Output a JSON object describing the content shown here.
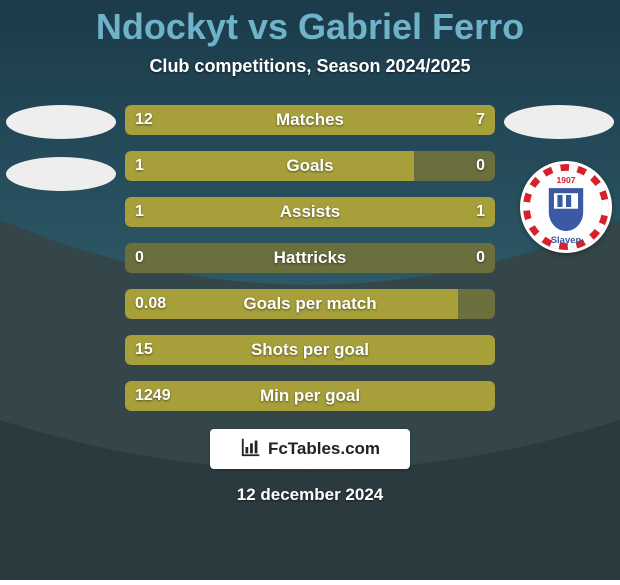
{
  "background": {
    "top_gradient_from": "#1b3a4a",
    "top_gradient_to": "#2d5866",
    "mid_color": "#35464a",
    "bottom_color": "#2a3a3e"
  },
  "title": {
    "text": "Ndockyt vs Gabriel Ferro",
    "color": "#6fb3c9",
    "fontsize": 36
  },
  "subtitle": "Club competitions, Season 2024/2025",
  "avatar_color": "#e8e8e8",
  "club_badge": {
    "name": "Slaven",
    "year": "1907",
    "outer": "#d8202a",
    "white": "#ffffff",
    "blue": "#3b5aa6"
  },
  "bars": {
    "track_color": "#6b6e3d",
    "fill_color": "#a7a03a",
    "label_fontsize": 17,
    "value_fontsize": 16,
    "rows": [
      {
        "label": "Matches",
        "left": "12",
        "right": "7",
        "left_pct": 58,
        "right_pct": 42
      },
      {
        "label": "Goals",
        "left": "1",
        "right": "0",
        "left_pct": 78,
        "right_pct": 0
      },
      {
        "label": "Assists",
        "left": "1",
        "right": "1",
        "left_pct": 50,
        "right_pct": 50
      },
      {
        "label": "Hattricks",
        "left": "0",
        "right": "0",
        "left_pct": 0,
        "right_pct": 0
      },
      {
        "label": "Goals per match",
        "left": "0.08",
        "right": "",
        "left_pct": 90,
        "right_pct": 0
      },
      {
        "label": "Shots per goal",
        "left": "15",
        "right": "",
        "left_pct": 100,
        "right_pct": 0
      },
      {
        "label": "Min per goal",
        "left": "1249",
        "right": "",
        "left_pct": 100,
        "right_pct": 0
      }
    ]
  },
  "footer": {
    "brand": "FcTables.com",
    "date": "12 december 2024"
  }
}
